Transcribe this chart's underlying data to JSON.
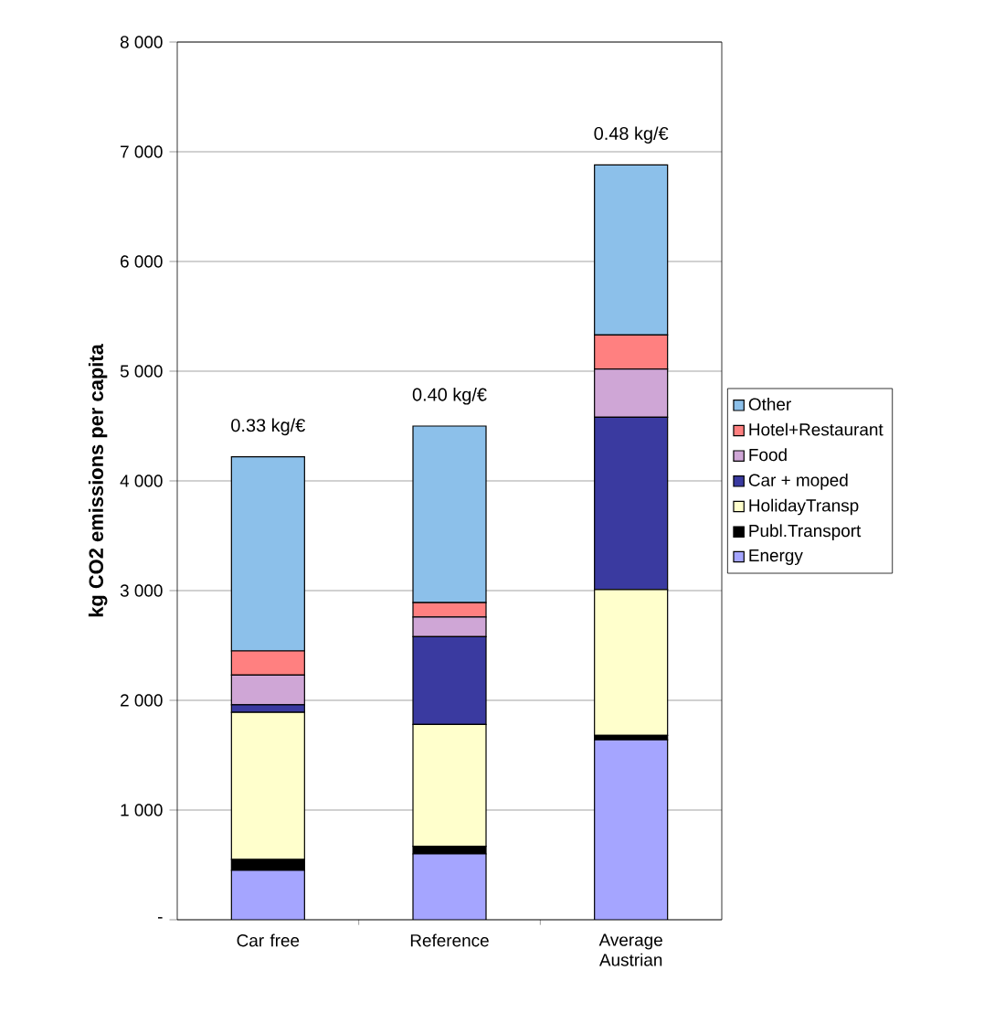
{
  "chart_data": {
    "type": "bar",
    "stacked": true,
    "ylabel": "kg CO2 emissions per capita",
    "categories": [
      "Car free",
      "Reference",
      "Average Austrian"
    ],
    "series": [
      {
        "name": "Energy",
        "color": "#a5a5ff",
        "values": [
          450,
          600,
          1640
        ]
      },
      {
        "name": "Publ.Transport",
        "color": "#000000",
        "values": [
          100,
          70,
          40
        ]
      },
      {
        "name": "HolidayTransp",
        "color": "#ffffcc",
        "values": [
          1340,
          1110,
          1330
        ]
      },
      {
        "name": "Car + moped",
        "color": "#3a3aa0",
        "values": [
          70,
          800,
          1570
        ]
      },
      {
        "name": "Food",
        "color": "#cfa6d6",
        "values": [
          270,
          180,
          440
        ]
      },
      {
        "name": "Hotel+Restaurant",
        "color": "#ff8080",
        "values": [
          220,
          130,
          310
        ]
      },
      {
        "name": "Other",
        "color": "#8cc0ea",
        "values": [
          1770,
          1610,
          1550
        ]
      }
    ],
    "ylim": [
      0,
      8000
    ],
    "yticks": [
      {
        "value": 0,
        "label": "-"
      },
      {
        "value": 1000,
        "label": "1 000"
      },
      {
        "value": 2000,
        "label": "2 000"
      },
      {
        "value": 3000,
        "label": "3 000"
      },
      {
        "value": 4000,
        "label": "4 000"
      },
      {
        "value": 5000,
        "label": "5 000"
      },
      {
        "value": 6000,
        "label": "6 000"
      },
      {
        "value": 7000,
        "label": "7 000"
      },
      {
        "value": 8000,
        "label": "8 000"
      }
    ],
    "grid": "y",
    "legend": "right",
    "annotations": [
      {
        "text": "0.33 kg/€",
        "x": "Car free",
        "y": 4220
      },
      {
        "text": "0.40 kg/€",
        "x": "Reference",
        "y": 4500
      },
      {
        "text": "0.48 kg/€",
        "x": "Average Austrian",
        "y": 6880
      }
    ]
  }
}
